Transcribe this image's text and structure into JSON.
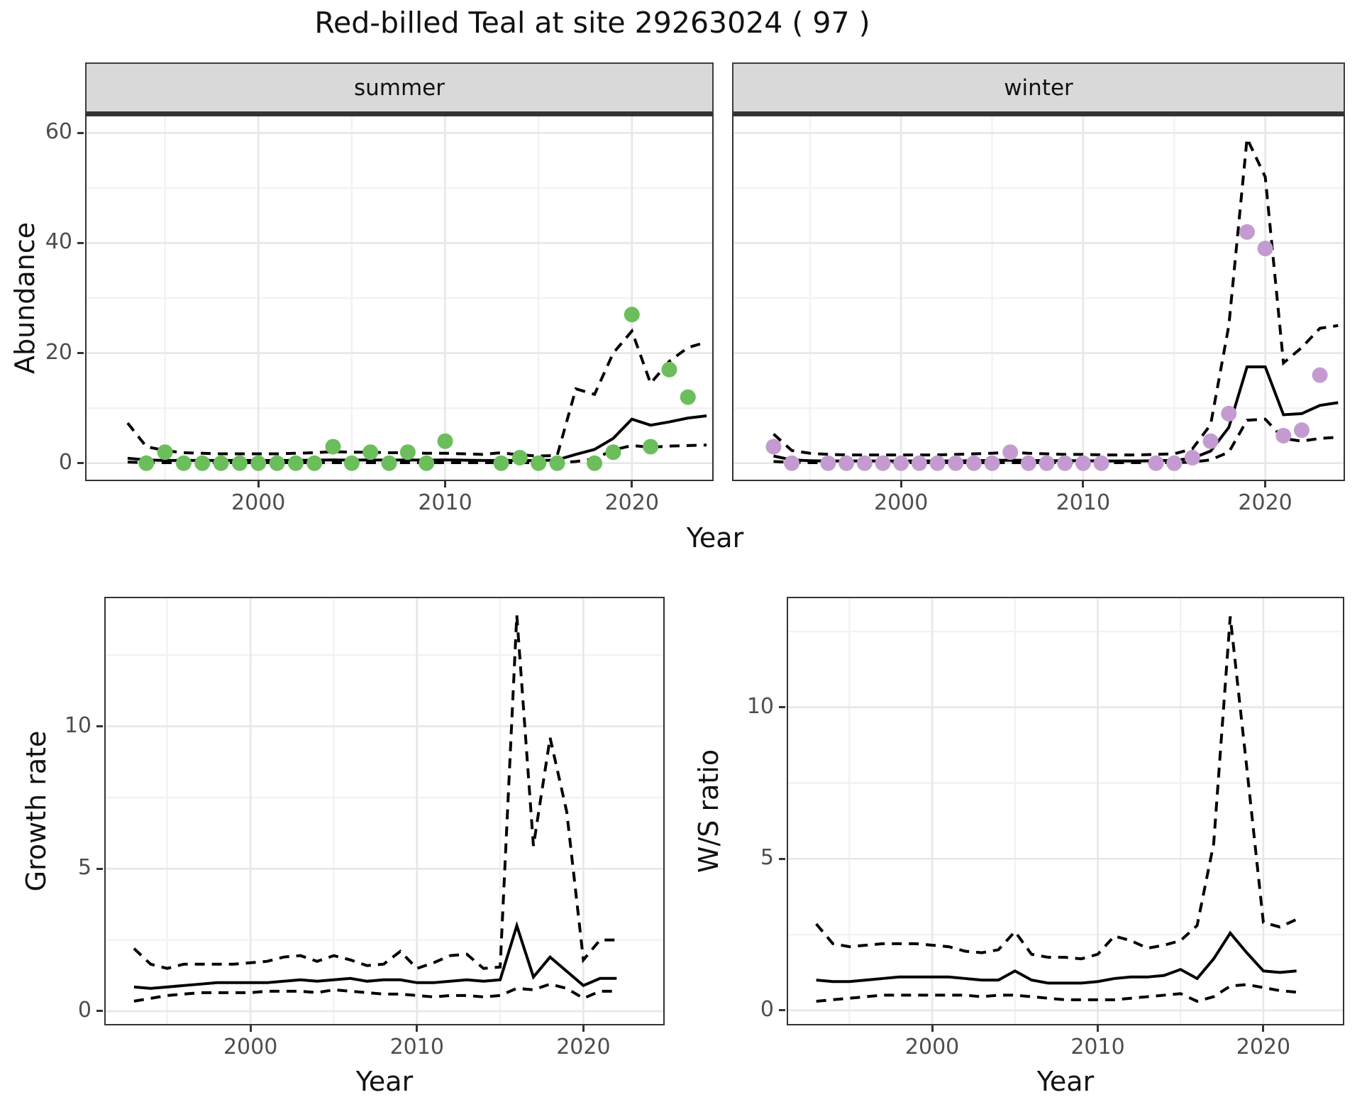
{
  "title": "Red-billed Teal at site 29263024 ( 97 )",
  "colors": {
    "summer_point": "#6cbe5c",
    "winter_point": "#c49bd1",
    "line": "#000000",
    "strip_bg": "#d9d9d9",
    "grid_major": "#e7e7e7",
    "grid_minor": "#f2f2f2",
    "tick_label": "#4d4d4d",
    "panel_border": "#333333"
  },
  "top_row": {
    "ylabel": "Abundance",
    "xlabel": "Year",
    "facets": [
      "summer",
      "winter"
    ]
  },
  "bottom_row": {
    "left": {
      "ylabel": "Growth rate",
      "xlabel": "Year"
    },
    "right": {
      "ylabel": "W/S ratio",
      "xlabel": "Year"
    }
  },
  "chart_data": [
    {
      "id": "summer",
      "type": "line",
      "title": "summer",
      "xlabel": "Year",
      "ylabel": "Abundance",
      "x_range": [
        1990.8,
        2024.3
      ],
      "y_range": [
        -3,
        63
      ],
      "x_major": [
        2000,
        2010,
        2020
      ],
      "x_minor": [
        1995,
        2005,
        2015
      ],
      "y_major": [
        0,
        20,
        40,
        60
      ],
      "y_minor": [
        10,
        30,
        50
      ],
      "show_y_axis": true,
      "point_color": "#6cbe5c",
      "points": {
        "x": [
          1994,
          1995,
          1996,
          1997,
          1998,
          1999,
          2000,
          2001,
          2002,
          2003,
          2004,
          2005,
          2006,
          2007,
          2008,
          2009,
          2010,
          2013,
          2014,
          2015,
          2016,
          2018,
          2019,
          2020,
          2021,
          2022,
          2023
        ],
        "y": [
          0,
          2,
          0,
          0,
          0,
          0,
          0,
          0,
          0,
          0,
          3,
          0,
          2,
          0,
          2,
          0,
          4,
          0,
          1,
          0,
          0,
          0,
          2,
          27,
          3,
          17,
          12
        ]
      },
      "fit": {
        "x": [
          1993,
          1994,
          1995,
          1996,
          1997,
          1998,
          1999,
          2000,
          2001,
          2002,
          2003,
          2004,
          2005,
          2006,
          2007,
          2008,
          2009,
          2010,
          2011,
          2012,
          2013,
          2014,
          2015,
          2016,
          2017,
          2018,
          2019,
          2020,
          2021,
          2022,
          2023,
          2024
        ],
        "y": [
          0.9,
          0.6,
          0.5,
          0.5,
          0.5,
          0.5,
          0.5,
          0.5,
          0.5,
          0.5,
          0.55,
          0.6,
          0.55,
          0.6,
          0.55,
          0.6,
          0.55,
          0.6,
          0.55,
          0.5,
          0.5,
          0.5,
          0.45,
          0.6,
          1.6,
          2.5,
          4.5,
          8.0,
          6.9,
          7.5,
          8.2,
          8.6
        ]
      },
      "ci_upper": {
        "x": [
          1993,
          1994,
          1995,
          1996,
          1997,
          1998,
          1999,
          2000,
          2001,
          2002,
          2003,
          2004,
          2005,
          2006,
          2007,
          2008,
          2009,
          2010,
          2011,
          2012,
          2013,
          2014,
          2015,
          2016,
          2017,
          2018,
          2019,
          2020,
          2021,
          2022,
          2023,
          2024
        ],
        "y": [
          7.3,
          3.0,
          2.3,
          1.9,
          1.8,
          1.7,
          1.7,
          1.7,
          1.7,
          1.8,
          1.9,
          2.1,
          2.0,
          2.0,
          1.9,
          1.9,
          1.8,
          1.8,
          1.7,
          1.6,
          1.9,
          1.5,
          1.3,
          1.4,
          13.5,
          12.5,
          20.0,
          24.0,
          14.5,
          18.5,
          21.0,
          22.0
        ]
      },
      "ci_lower": {
        "x": [
          1993,
          1994,
          1995,
          1996,
          1997,
          1998,
          1999,
          2000,
          2001,
          2002,
          2003,
          2004,
          2005,
          2006,
          2007,
          2008,
          2009,
          2010,
          2011,
          2012,
          2013,
          2014,
          2015,
          2016,
          2017,
          2018,
          2019,
          2020,
          2021,
          2022,
          2023,
          2024
        ],
        "y": [
          0.2,
          0.1,
          0.1,
          0.1,
          0.1,
          0.1,
          0.1,
          0.1,
          0.1,
          0.1,
          0.1,
          0.1,
          0.1,
          0.1,
          0.1,
          0.1,
          0.1,
          0.1,
          0.1,
          0.1,
          0.1,
          0.1,
          0.1,
          0.1,
          0.3,
          0.8,
          2.4,
          3.2,
          2.9,
          3.1,
          3.2,
          3.3
        ]
      }
    },
    {
      "id": "winter",
      "type": "line",
      "title": "winter",
      "xlabel": "Year",
      "ylabel": "Abundance",
      "x_range": [
        1990.8,
        2024.3
      ],
      "y_range": [
        -3,
        63
      ],
      "x_major": [
        2000,
        2010,
        2020
      ],
      "x_minor": [
        1995,
        2005,
        2015
      ],
      "y_major": [
        0,
        20,
        40,
        60
      ],
      "y_minor": [
        10,
        30,
        50
      ],
      "show_y_axis": false,
      "point_color": "#c49bd1",
      "points": {
        "x": [
          1993,
          1994,
          1996,
          1997,
          1998,
          1999,
          2000,
          2001,
          2002,
          2003,
          2004,
          2005,
          2006,
          2007,
          2008,
          2009,
          2010,
          2011,
          2014,
          2015,
          2016,
          2017,
          2018,
          2019,
          2020,
          2021,
          2022,
          2023
        ],
        "y": [
          3,
          0,
          0,
          0,
          0,
          0,
          0,
          0,
          0,
          0,
          0,
          0,
          2,
          0,
          0,
          0,
          0,
          0,
          0,
          0,
          1,
          4,
          9,
          42,
          39,
          5,
          6,
          16
        ]
      },
      "fit": {
        "x": [
          1993,
          1994,
          1995,
          1996,
          1997,
          1998,
          1999,
          2000,
          2001,
          2002,
          2003,
          2004,
          2005,
          2006,
          2007,
          2008,
          2009,
          2010,
          2011,
          2012,
          2013,
          2014,
          2015,
          2016,
          2017,
          2018,
          2019,
          2020,
          2021,
          2022,
          2023,
          2024
        ],
        "y": [
          1.3,
          0.6,
          0.45,
          0.4,
          0.4,
          0.4,
          0.4,
          0.4,
          0.4,
          0.4,
          0.4,
          0.45,
          0.5,
          0.55,
          0.5,
          0.45,
          0.45,
          0.45,
          0.4,
          0.4,
          0.4,
          0.45,
          0.5,
          0.9,
          2.2,
          6.5,
          17.5,
          17.5,
          8.8,
          9.0,
          10.5,
          11.0
        ]
      },
      "ci_upper": {
        "x": [
          1993,
          1994,
          1995,
          1996,
          1997,
          1998,
          1999,
          2000,
          2001,
          2002,
          2003,
          2004,
          2005,
          2006,
          2007,
          2008,
          2009,
          2010,
          2011,
          2012,
          2013,
          2014,
          2015,
          2016,
          2017,
          2018,
          2019,
          2020,
          2021,
          2022,
          2023,
          2024
        ],
        "y": [
          5.3,
          2.3,
          1.8,
          1.6,
          1.5,
          1.5,
          1.5,
          1.5,
          1.5,
          1.5,
          1.6,
          1.7,
          1.8,
          2.0,
          1.8,
          1.7,
          1.6,
          1.6,
          1.5,
          1.5,
          1.5,
          1.6,
          1.7,
          2.6,
          7.0,
          25.0,
          59.0,
          52.0,
          18.2,
          21.0,
          24.5,
          25.0
        ]
      },
      "ci_lower": {
        "x": [
          1993,
          1994,
          1995,
          1996,
          1997,
          1998,
          1999,
          2000,
          2001,
          2002,
          2003,
          2004,
          2005,
          2006,
          2007,
          2008,
          2009,
          2010,
          2011,
          2012,
          2013,
          2014,
          2015,
          2016,
          2017,
          2018,
          2019,
          2020,
          2021,
          2022,
          2023,
          2024
        ],
        "y": [
          0.3,
          0.15,
          0.1,
          0.1,
          0.1,
          0.1,
          0.1,
          0.1,
          0.1,
          0.1,
          0.1,
          0.1,
          0.1,
          0.1,
          0.1,
          0.1,
          0.1,
          0.1,
          0.1,
          0.1,
          0.1,
          0.1,
          0.1,
          0.2,
          0.6,
          2.0,
          7.8,
          8.0,
          4.5,
          4.0,
          4.5,
          4.7
        ]
      }
    },
    {
      "id": "growth",
      "type": "line",
      "title": "Growth rate",
      "xlabel": "Year",
      "ylabel": "Growth rate",
      "x_range": [
        1991.3,
        2024.8
      ],
      "y_range": [
        -0.45,
        14.5
      ],
      "x_major": [
        2000,
        2010,
        2020
      ],
      "x_minor": [
        1995,
        2005,
        2015
      ],
      "y_major": [
        0,
        5,
        10
      ],
      "y_minor": [
        2.5,
        7.5,
        12.5
      ],
      "show_y_axis": true,
      "point_color": null,
      "points": {
        "x": [],
        "y": []
      },
      "fit": {
        "x": [
          1993,
          1994,
          1995,
          1996,
          1997,
          1998,
          1999,
          2000,
          2001,
          2002,
          2003,
          2004,
          2005,
          2006,
          2007,
          2008,
          2009,
          2010,
          2011,
          2012,
          2013,
          2014,
          2015,
          2016,
          2017,
          2018,
          2019,
          2020,
          2021,
          2022
        ],
        "y": [
          0.85,
          0.8,
          0.85,
          0.9,
          0.95,
          1.0,
          1.0,
          1.0,
          1.0,
          1.05,
          1.1,
          1.05,
          1.1,
          1.15,
          1.05,
          1.1,
          1.1,
          1.0,
          1.0,
          1.05,
          1.1,
          1.05,
          1.1,
          3.0,
          1.2,
          1.9,
          1.4,
          0.9,
          1.15,
          1.15
        ]
      },
      "ci_upper": {
        "x": [
          1993,
          1994,
          1995,
          1996,
          1997,
          1998,
          1999,
          2000,
          2001,
          2002,
          2003,
          2004,
          2005,
          2006,
          2007,
          2008,
          2009,
          2010,
          2011,
          2012,
          2013,
          2014,
          2015,
          2016,
          2017,
          2018,
          2019,
          2020,
          2021,
          2022
        ],
        "y": [
          2.2,
          1.65,
          1.5,
          1.65,
          1.65,
          1.65,
          1.65,
          1.7,
          1.75,
          1.9,
          1.95,
          1.75,
          1.95,
          1.8,
          1.6,
          1.65,
          2.1,
          1.5,
          1.7,
          1.95,
          2.0,
          1.5,
          1.55,
          13.9,
          5.8,
          9.6,
          7.0,
          1.8,
          2.5,
          2.5
        ]
      },
      "ci_lower": {
        "x": [
          1993,
          1994,
          1995,
          1996,
          1997,
          1998,
          1999,
          2000,
          2001,
          2002,
          2003,
          2004,
          2005,
          2006,
          2007,
          2008,
          2009,
          2010,
          2011,
          2012,
          2013,
          2014,
          2015,
          2016,
          2017,
          2018,
          2019,
          2020,
          2021,
          2022
        ],
        "y": [
          0.35,
          0.45,
          0.55,
          0.6,
          0.65,
          0.65,
          0.65,
          0.65,
          0.7,
          0.7,
          0.7,
          0.65,
          0.75,
          0.7,
          0.65,
          0.6,
          0.6,
          0.55,
          0.5,
          0.55,
          0.55,
          0.5,
          0.55,
          0.8,
          0.75,
          0.95,
          0.8,
          0.45,
          0.7,
          0.7
        ]
      }
    },
    {
      "id": "ws",
      "type": "line",
      "title": "W/S ratio",
      "xlabel": "Year",
      "ylabel": "W/S ratio",
      "x_range": [
        1991.3,
        2024.8
      ],
      "y_range": [
        -0.45,
        13.6
      ],
      "x_major": [
        2000,
        2010,
        2020
      ],
      "x_minor": [
        1995,
        2005,
        2015
      ],
      "y_major": [
        0,
        5,
        10
      ],
      "y_minor": [
        2.5,
        7.5,
        12.5
      ],
      "show_y_axis": true,
      "point_color": null,
      "points": {
        "x": [],
        "y": []
      },
      "fit": {
        "x": [
          1993,
          1994,
          1995,
          1996,
          1997,
          1998,
          1999,
          2000,
          2001,
          2002,
          2003,
          2004,
          2005,
          2006,
          2007,
          2008,
          2009,
          2010,
          2011,
          2012,
          2013,
          2014,
          2015,
          2016,
          2017,
          2018,
          2019,
          2020,
          2021,
          2022
        ],
        "y": [
          1.0,
          0.95,
          0.95,
          1.0,
          1.05,
          1.1,
          1.1,
          1.1,
          1.1,
          1.05,
          1.0,
          1.0,
          1.3,
          1.0,
          0.9,
          0.9,
          0.9,
          0.95,
          1.05,
          1.1,
          1.1,
          1.15,
          1.35,
          1.05,
          1.7,
          2.55,
          1.9,
          1.3,
          1.25,
          1.3
        ]
      },
      "ci_upper": {
        "x": [
          1993,
          1994,
          1995,
          1996,
          1997,
          1998,
          1999,
          2000,
          2001,
          2002,
          2003,
          2004,
          2005,
          2006,
          2007,
          2008,
          2009,
          2010,
          2011,
          2012,
          2013,
          2014,
          2015,
          2016,
          2017,
          2018,
          2019,
          2020,
          2021,
          2022
        ],
        "y": [
          2.85,
          2.2,
          2.1,
          2.15,
          2.2,
          2.2,
          2.2,
          2.15,
          2.1,
          1.95,
          1.9,
          2.0,
          2.6,
          1.85,
          1.75,
          1.75,
          1.7,
          1.85,
          2.45,
          2.3,
          2.05,
          2.15,
          2.3,
          2.8,
          5.5,
          13.0,
          8.0,
          2.9,
          2.75,
          3.0
        ]
      },
      "ci_lower": {
        "x": [
          1993,
          1994,
          1995,
          1996,
          1997,
          1998,
          1999,
          2000,
          2001,
          2002,
          2003,
          2004,
          2005,
          2006,
          2007,
          2008,
          2009,
          2010,
          2011,
          2012,
          2013,
          2014,
          2015,
          2016,
          2017,
          2018,
          2019,
          2020,
          2021,
          2022
        ],
        "y": [
          0.3,
          0.35,
          0.4,
          0.45,
          0.5,
          0.5,
          0.5,
          0.5,
          0.5,
          0.5,
          0.45,
          0.5,
          0.5,
          0.45,
          0.4,
          0.35,
          0.35,
          0.35,
          0.35,
          0.4,
          0.45,
          0.5,
          0.55,
          0.3,
          0.45,
          0.8,
          0.85,
          0.75,
          0.65,
          0.6
        ]
      }
    }
  ]
}
